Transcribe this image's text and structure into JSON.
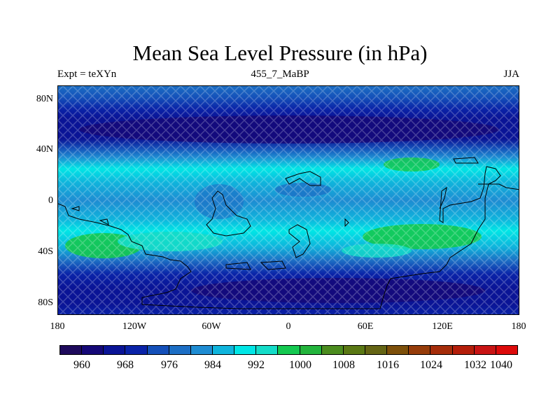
{
  "title": "Mean Sea Level Pressure (in hPa)",
  "left_string": "Expt = teXYn",
  "center_string": "455_7_MaBP",
  "right_string": "JJA",
  "map": {
    "projection": "cylindrical equidistant",
    "lon_range": [
      -180,
      180
    ],
    "lat_range": [
      -90,
      90
    ],
    "lat_ticks": [
      "80N",
      "40N",
      "0",
      "40S",
      "80S"
    ],
    "lon_ticks": [
      "180",
      "120W",
      "60W",
      "0",
      "60E",
      "120E",
      "180"
    ],
    "fill_pattern": "cross-hatched diamond stipple",
    "coastlines": "thin black outline of paleo-continents"
  },
  "colorbar": {
    "colors": [
      "#1e0a5c",
      "#150877",
      "#0a1496",
      "#0a23a8",
      "#1450b9",
      "#1c6ec4",
      "#1e8cd2",
      "#0fb4dc",
      "#00e6e6",
      "#14dcc8",
      "#14c850",
      "#23b43c",
      "#4b8c1e",
      "#5a7814",
      "#646414",
      "#7d500a",
      "#963c0a",
      "#a52d0a",
      "#b41e0a",
      "#c81414",
      "#dc0a0a"
    ],
    "labels": [
      "960",
      "968",
      "976",
      "984",
      "992",
      "1000",
      "1008",
      "1016",
      "1024",
      "1032",
      "1040"
    ]
  },
  "chart_data": {
    "type": "heatmap",
    "title": "Mean Sea Level Pressure (in hPa)",
    "variable_units": "hPa",
    "season": "JJA",
    "experiment": "teXYn",
    "period": "455_7_MaBP",
    "x_ticks": [
      "180",
      "120W",
      "60W",
      "0",
      "60E",
      "120E",
      "180"
    ],
    "y_ticks": [
      "80N",
      "40N",
      "0",
      "40S",
      "80S"
    ],
    "zonal_bands_hPa": [
      {
        "lat_from": 90,
        "lat_to": 75,
        "value": 988
      },
      {
        "lat_from": 75,
        "lat_to": 65,
        "value": 976
      },
      {
        "lat_from": 65,
        "lat_to": 45,
        "value": 962
      },
      {
        "lat_from": 45,
        "lat_to": 35,
        "value": 980
      },
      {
        "lat_from": 35,
        "lat_to": 15,
        "value": 998
      },
      {
        "lat_from": 15,
        "lat_to": -15,
        "value": 990
      },
      {
        "lat_from": -15,
        "lat_to": -25,
        "value": 998
      },
      {
        "lat_from": -25,
        "lat_to": -45,
        "value": 1006
      },
      {
        "lat_from": -45,
        "lat_to": -55,
        "value": 996
      },
      {
        "lat_from": -55,
        "lat_to": -65,
        "value": 984
      },
      {
        "lat_from": -65,
        "lat_to": -90,
        "value": 966
      }
    ],
    "contour_levels": [
      960,
      968,
      976,
      984,
      992,
      1000,
      1008,
      1016,
      1024,
      1032,
      1040
    ]
  }
}
